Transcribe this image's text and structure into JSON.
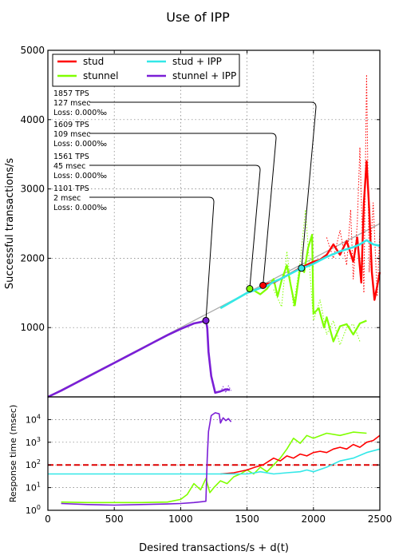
{
  "chart_data": {
    "title": "Use of IPP",
    "xlabel": "Desired transactions/s + d(t)",
    "xlim": [
      0,
      2500
    ],
    "x_ticks": [
      "0",
      "500",
      "1000",
      "1500",
      "2000",
      "2500"
    ],
    "colors": {
      "stud": "#ff0000",
      "stunnel": "#80ff00",
      "stud_ipp": "#33e8e8",
      "stunnel_ipp": "#7a1ed6",
      "reference": "#aaaaaa",
      "threshold": "#dd0000"
    },
    "legend": {
      "placement": "top-left",
      "entries": [
        {
          "label": "stud",
          "series": "stud"
        },
        {
          "label": "stunnel",
          "series": "stunnel"
        },
        {
          "label": "stud + IPP",
          "series": "stud_ipp"
        },
        {
          "label": "stunnel + IPP",
          "series": "stunnel_ipp"
        }
      ]
    },
    "top": {
      "type": "line",
      "ylabel": "Successful transactions/s",
      "ylim": [
        0,
        5000
      ],
      "y_ticks": [
        "1000",
        "2000",
        "3000",
        "4000",
        "5000"
      ],
      "grid": true,
      "reference_line": {
        "x": [
          0,
          2500
        ],
        "y": [
          0,
          2500
        ]
      },
      "series": {
        "stunnel_ipp": {
          "x": [
            0,
            100,
            200,
            300,
            400,
            500,
            600,
            700,
            800,
            900,
            1000,
            1100,
            1150,
            1190,
            1200,
            1210,
            1230,
            1260,
            1300,
            1340,
            1370
          ],
          "y": [
            0,
            90,
            190,
            290,
            390,
            490,
            590,
            690,
            790,
            890,
            980,
            1060,
            1080,
            1100,
            1000,
            650,
            300,
            60,
            80,
            110,
            100
          ]
        },
        "stunnel_ipp_dotted": {
          "x": [
            1300,
            1320,
            1340,
            1360,
            1380
          ],
          "y": [
            70,
            150,
            60,
            160,
            90
          ]
        },
        "stud_ipp": {
          "x": [
            1300,
            1400,
            1500,
            1560,
            1600,
            1650,
            1700,
            1750,
            1800,
            1850,
            1900,
            1950,
            2000,
            2050,
            2100,
            2150,
            2200,
            2250,
            2300,
            2350,
            2400,
            2450,
            2500
          ],
          "y": [
            1280,
            1390,
            1500,
            1540,
            1570,
            1600,
            1660,
            1700,
            1750,
            1800,
            1850,
            1880,
            1920,
            1970,
            2020,
            2060,
            2100,
            2130,
            2160,
            2200,
            2260,
            2200,
            2180
          ]
        },
        "stunnel": {
          "x": [
            1300,
            1400,
            1500,
            1530,
            1600,
            1650,
            1700,
            1730,
            1760,
            1800,
            1830,
            1860,
            1900,
            1930,
            1960,
            1990,
            2000,
            2040,
            2080,
            2100,
            2150,
            2200,
            2250,
            2300,
            2350,
            2400
          ],
          "y": [
            1280,
            1390,
            1500,
            1560,
            1480,
            1560,
            1700,
            1450,
            1680,
            1900,
            1600,
            1320,
            1870,
            1800,
            2150,
            2340,
            1200,
            1280,
            1000,
            1150,
            800,
            1020,
            1050,
            900,
            1060,
            1100
          ]
        },
        "stunnel_dotted": {
          "x": [
            1700,
            1760,
            1800,
            1850,
            1900,
            1940,
            2000,
            2050,
            2100,
            2150,
            2200,
            2250,
            2300,
            2350
          ],
          "y": [
            1550,
            1300,
            2100,
            1300,
            1950,
            2700,
            1100,
            1400,
            900,
            1100,
            750,
            1000,
            1050,
            800
          ]
        },
        "stud": {
          "x": [
            1620,
            1700,
            1800,
            1900,
            2000,
            2050,
            2100,
            2150,
            2200,
            2250,
            2300,
            2330,
            2360,
            2380,
            2400,
            2420,
            2440,
            2460,
            2480,
            2500
          ],
          "y": [
            1620,
            1650,
            1750,
            1860,
            1950,
            1980,
            2050,
            2200,
            2050,
            2250,
            1950,
            2300,
            1650,
            2800,
            3400,
            2700,
            1800,
            1400,
            1600,
            1800
          ]
        },
        "stud_dotted": {
          "x": [
            2100,
            2150,
            2200,
            2250,
            2280,
            2300,
            2330,
            2350,
            2380,
            2400,
            2420,
            2450,
            2480,
            2500
          ],
          "y": [
            2300,
            2000,
            2400,
            1900,
            2700,
            1700,
            2500,
            3600,
            1500,
            4650,
            1800,
            2800,
            1450,
            2400
          ]
        }
      },
      "knee_points": [
        {
          "x": 1190,
          "y": 1101,
          "series": "stunnel_ipp"
        },
        {
          "x": 1520,
          "y": 1561,
          "series": "stunnel"
        },
        {
          "x": 1620,
          "y": 1609,
          "series": "stud"
        },
        {
          "x": 1910,
          "y": 1857,
          "series": "stud_ipp"
        }
      ],
      "annotations": [
        {
          "lines": [
            "1857 TPS",
            "127 msec",
            "Loss: 0.000‰"
          ],
          "points_to": 3
        },
        {
          "lines": [
            "1609 TPS",
            "109 msec",
            "Loss: 0.000‰"
          ],
          "points_to": 2
        },
        {
          "lines": [
            "1561 TPS",
            "45 msec",
            "Loss: 0.000‰"
          ],
          "points_to": 1
        },
        {
          "lines": [
            "1101 TPS",
            "2 msec",
            "Loss: 0.000‰"
          ],
          "points_to": 0
        }
      ]
    },
    "bottom": {
      "type": "line",
      "ylabel": "Response time (msec)",
      "yscale": "log",
      "ylim": [
        1,
        100000
      ],
      "y_ticks": [
        {
          "base": "10",
          "exp": "0"
        },
        {
          "base": "10",
          "exp": "1"
        },
        {
          "base": "10",
          "exp": "2"
        },
        {
          "base": "10",
          "exp": "3"
        },
        {
          "base": "10",
          "exp": "4"
        }
      ],
      "grid": true,
      "threshold": 100,
      "series": {
        "stunnel_ipp": {
          "x": [
            100,
            300,
            500,
            700,
            900,
            1000,
            1100,
            1190,
            1200,
            1210,
            1230,
            1260,
            1290,
            1300,
            1320,
            1340,
            1360,
            1380
          ],
          "y": [
            2,
            1.8,
            1.7,
            1.8,
            1.9,
            2,
            2.2,
            2.5,
            200,
            3000,
            15000,
            20000,
            18000,
            7000,
            12000,
            9000,
            11000,
            8000
          ]
        },
        "stunnel": {
          "x": [
            100,
            300,
            500,
            700,
            900,
            1000,
            1050,
            1100,
            1150,
            1190,
            1220,
            1250,
            1300,
            1350,
            1400,
            1450,
            1500,
            1550,
            1600,
            1650,
            1700,
            1750,
            1800,
            1850,
            1900,
            1950,
            2000,
            2100,
            2200,
            2300,
            2400
          ],
          "y": [
            2.3,
            2.2,
            2.2,
            2.2,
            2.3,
            3,
            5,
            15,
            8,
            25,
            6,
            10,
            20,
            15,
            30,
            40,
            60,
            40,
            80,
            50,
            100,
            200,
            500,
            1500,
            900,
            2000,
            1500,
            2500,
            2000,
            2800,
            2500
          ]
        },
        "stud_ipp": {
          "x": [
            0,
            200,
            500,
            800,
            1000,
            1200,
            1300,
            1400,
            1500,
            1560,
            1600,
            1700,
            1800,
            1900,
            1950,
            2000,
            2100,
            2200,
            2300,
            2400,
            2500
          ],
          "y": [
            40,
            40,
            40,
            40,
            40,
            40,
            40,
            40,
            40,
            45,
            50,
            40,
            45,
            50,
            60,
            50,
            80,
            150,
            200,
            350,
            500
          ]
        },
        "stud": {
          "x": [
            1300,
            1400,
            1500,
            1560,
            1620,
            1700,
            1750,
            1800,
            1850,
            1900,
            1950,
            2000,
            2050,
            2100,
            2150,
            2200,
            2250,
            2300,
            2350,
            2400,
            2450,
            2500
          ],
          "y": [
            40,
            45,
            60,
            80,
            100,
            200,
            150,
            250,
            200,
            300,
            250,
            350,
            400,
            350,
            500,
            600,
            500,
            800,
            600,
            1000,
            1200,
            2000
          ]
        }
      }
    }
  }
}
